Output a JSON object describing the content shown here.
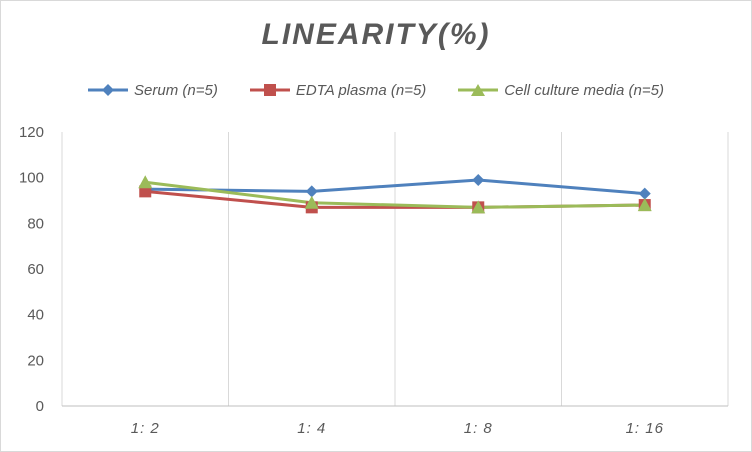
{
  "chart_data": {
    "type": "line",
    "title": "LINEARITY(%)",
    "categories": [
      "1:2",
      "1:4",
      "1:8",
      "1:16"
    ],
    "ylim": [
      0,
      120
    ],
    "yticks": [
      0,
      20,
      40,
      60,
      80,
      100,
      120
    ],
    "grid": "vertical",
    "legend_position": "top",
    "series": [
      {
        "name": "Serum (n=5)",
        "values": [
          95,
          94,
          99,
          93
        ],
        "color": "#4f81bd",
        "marker": "diamond"
      },
      {
        "name": "EDTA plasma (n=5)",
        "values": [
          94,
          87,
          87,
          88
        ],
        "color": "#c0504d",
        "marker": "square"
      },
      {
        "name": "Cell culture media (n=5)",
        "values": [
          98,
          89,
          87,
          88
        ],
        "color": "#9bbb59",
        "marker": "triangle"
      }
    ]
  }
}
